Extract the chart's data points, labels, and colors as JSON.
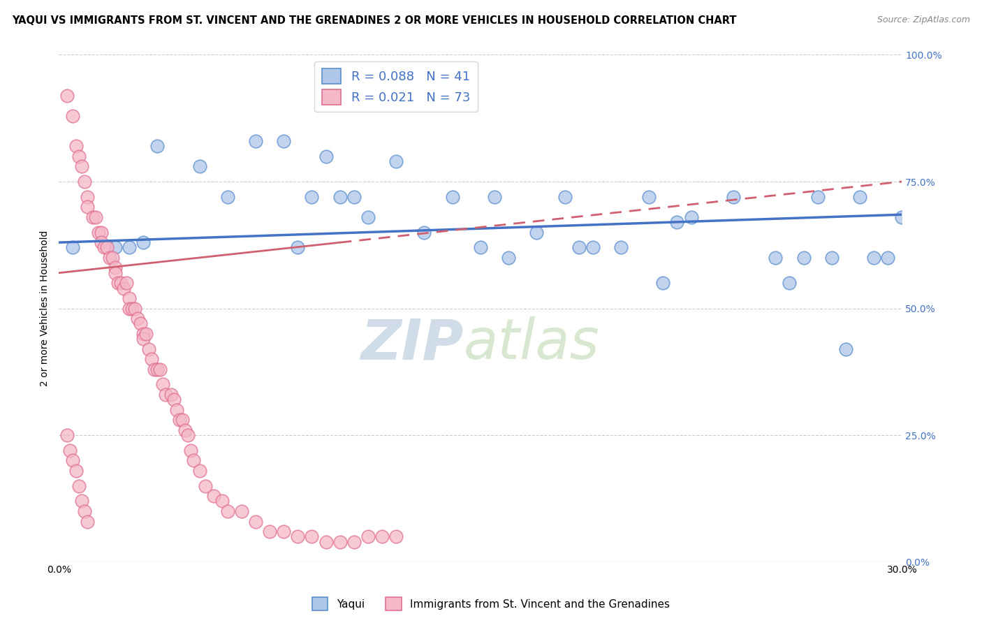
{
  "title": "YAQUI VS IMMIGRANTS FROM ST. VINCENT AND THE GRENADINES 2 OR MORE VEHICLES IN HOUSEHOLD CORRELATION CHART",
  "source": "Source: ZipAtlas.com",
  "ylabel": "2 or more Vehicles in Household",
  "ytick_labels": [
    "0.0%",
    "25.0%",
    "50.0%",
    "75.0%",
    "100.0%"
  ],
  "ytick_values": [
    0.0,
    0.25,
    0.5,
    0.75,
    1.0
  ],
  "xmin": 0.0,
  "xmax": 0.3,
  "ymin": 0.0,
  "ymax": 1.0,
  "legend_blue_R": "R = 0.088",
  "legend_blue_N": "N = 41",
  "legend_pink_R": "R = 0.021",
  "legend_pink_N": "N = 73",
  "blue_fill_color": "#aec6e8",
  "pink_fill_color": "#f4b8c8",
  "blue_edge_color": "#5b8fcf",
  "pink_edge_color": "#e07090",
  "blue_line_color": "#4472c4",
  "pink_line_color": "#d06070",
  "watermark_zip": "ZIP",
  "watermark_atlas": "atlas",
  "title_fontsize": 10.5,
  "source_fontsize": 9,
  "axis_label_fontsize": 10,
  "tick_fontsize": 10,
  "legend_fontsize": 13,
  "blue_scatter_x": [
    0.005,
    0.02,
    0.025,
    0.03,
    0.035,
    0.05,
    0.06,
    0.07,
    0.08,
    0.085,
    0.09,
    0.095,
    0.1,
    0.105,
    0.11,
    0.12,
    0.13,
    0.14,
    0.15,
    0.155,
    0.16,
    0.17,
    0.18,
    0.185,
    0.19,
    0.2,
    0.21,
    0.215,
    0.22,
    0.225,
    0.24,
    0.255,
    0.265,
    0.27,
    0.275,
    0.28,
    0.285,
    0.29,
    0.295,
    0.26,
    0.3
  ],
  "blue_scatter_y": [
    0.62,
    0.62,
    0.62,
    0.63,
    0.82,
    0.78,
    0.72,
    0.83,
    0.83,
    0.62,
    0.72,
    0.8,
    0.72,
    0.72,
    0.68,
    0.79,
    0.65,
    0.72,
    0.62,
    0.72,
    0.6,
    0.65,
    0.72,
    0.62,
    0.62,
    0.62,
    0.72,
    0.55,
    0.67,
    0.68,
    0.72,
    0.6,
    0.6,
    0.72,
    0.6,
    0.42,
    0.72,
    0.6,
    0.6,
    0.55,
    0.68
  ],
  "pink_scatter_x": [
    0.003,
    0.005,
    0.006,
    0.007,
    0.008,
    0.009,
    0.01,
    0.01,
    0.012,
    0.013,
    0.014,
    0.015,
    0.015,
    0.016,
    0.017,
    0.018,
    0.019,
    0.02,
    0.02,
    0.021,
    0.022,
    0.023,
    0.024,
    0.025,
    0.025,
    0.026,
    0.027,
    0.028,
    0.029,
    0.03,
    0.03,
    0.031,
    0.032,
    0.033,
    0.034,
    0.035,
    0.036,
    0.037,
    0.038,
    0.04,
    0.041,
    0.042,
    0.043,
    0.044,
    0.045,
    0.046,
    0.047,
    0.048,
    0.05,
    0.052,
    0.055,
    0.058,
    0.06,
    0.065,
    0.07,
    0.075,
    0.08,
    0.085,
    0.09,
    0.095,
    0.1,
    0.105,
    0.11,
    0.115,
    0.12,
    0.003,
    0.004,
    0.005,
    0.006,
    0.007,
    0.008,
    0.009,
    0.01
  ],
  "pink_scatter_y": [
    0.92,
    0.88,
    0.82,
    0.8,
    0.78,
    0.75,
    0.72,
    0.7,
    0.68,
    0.68,
    0.65,
    0.65,
    0.63,
    0.62,
    0.62,
    0.6,
    0.6,
    0.58,
    0.57,
    0.55,
    0.55,
    0.54,
    0.55,
    0.52,
    0.5,
    0.5,
    0.5,
    0.48,
    0.47,
    0.45,
    0.44,
    0.45,
    0.42,
    0.4,
    0.38,
    0.38,
    0.38,
    0.35,
    0.33,
    0.33,
    0.32,
    0.3,
    0.28,
    0.28,
    0.26,
    0.25,
    0.22,
    0.2,
    0.18,
    0.15,
    0.13,
    0.12,
    0.1,
    0.1,
    0.08,
    0.06,
    0.06,
    0.05,
    0.05,
    0.04,
    0.04,
    0.04,
    0.05,
    0.05,
    0.05,
    0.25,
    0.22,
    0.2,
    0.18,
    0.15,
    0.12,
    0.1,
    0.08
  ]
}
